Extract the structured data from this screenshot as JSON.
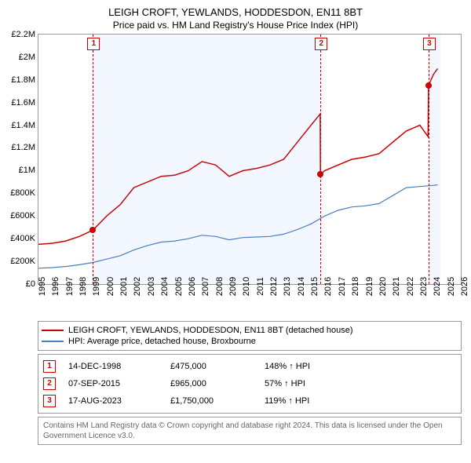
{
  "title": "LEIGH CROFT, YEWLANDS, HODDESDON, EN11 8BT",
  "subtitle": "Price paid vs. HM Land Registry's House Price Index (HPI)",
  "chart": {
    "type": "line",
    "background_color": "#ffffff",
    "shaded_band_color": "rgba(100,150,255,0.08)",
    "x_min": 1995,
    "x_max": 2026,
    "x_ticks": [
      1995,
      1996,
      1997,
      1998,
      1999,
      2000,
      2001,
      2002,
      2003,
      2004,
      2005,
      2006,
      2007,
      2008,
      2009,
      2010,
      2011,
      2012,
      2013,
      2014,
      2015,
      2016,
      2017,
      2018,
      2019,
      2020,
      2021,
      2022,
      2023,
      2024,
      2025,
      2026
    ],
    "y_min": 0,
    "y_max": 2200000,
    "y_ticks": [
      0,
      200000,
      400000,
      600000,
      800000,
      1000000,
      1200000,
      1400000,
      1600000,
      1800000,
      2000000,
      2200000
    ],
    "y_tick_labels": [
      "£0",
      "£200K",
      "£400K",
      "£600K",
      "£800K",
      "£1M",
      "£1.2M",
      "£1.4M",
      "£1.6M",
      "£1.8M",
      "£2M",
      "£2.2M"
    ],
    "shaded_bands": [
      {
        "from": 1999,
        "to": 2015.7
      },
      {
        "from": 2023.63,
        "to": 2024.5
      }
    ],
    "series": [
      {
        "name": "price_paid",
        "label": "LEIGH CROFT, YEWLANDS, HODDESDON, EN11 8BT (detached house)",
        "color": "#cc0000",
        "line_width": 1.5,
        "points": [
          [
            1995,
            350000
          ],
          [
            1996,
            360000
          ],
          [
            1997,
            380000
          ],
          [
            1998,
            420000
          ],
          [
            1999,
            475000
          ],
          [
            2000,
            600000
          ],
          [
            2001,
            700000
          ],
          [
            2002,
            850000
          ],
          [
            2003,
            900000
          ],
          [
            2004,
            950000
          ],
          [
            2005,
            960000
          ],
          [
            2006,
            1000000
          ],
          [
            2007,
            1080000
          ],
          [
            2008,
            1050000
          ],
          [
            2009,
            950000
          ],
          [
            2010,
            1000000
          ],
          [
            2011,
            1020000
          ],
          [
            2012,
            1050000
          ],
          [
            2013,
            1100000
          ],
          [
            2014,
            1250000
          ],
          [
            2015,
            1400000
          ],
          [
            2015.68,
            1500000
          ],
          [
            2015.7,
            965000
          ],
          [
            2016,
            1000000
          ],
          [
            2017,
            1050000
          ],
          [
            2018,
            1100000
          ],
          [
            2019,
            1120000
          ],
          [
            2020,
            1150000
          ],
          [
            2021,
            1250000
          ],
          [
            2022,
            1350000
          ],
          [
            2023,
            1400000
          ],
          [
            2023.6,
            1300000
          ],
          [
            2023.63,
            1750000
          ],
          [
            2024,
            1850000
          ],
          [
            2024.3,
            1900000
          ]
        ]
      },
      {
        "name": "hpi",
        "label": "HPI: Average price, detached house, Broxbourne",
        "color": "#4a7ebb",
        "line_width": 1.2,
        "points": [
          [
            1995,
            140000
          ],
          [
            1996,
            145000
          ],
          [
            1997,
            155000
          ],
          [
            1998,
            170000
          ],
          [
            1999,
            190000
          ],
          [
            2000,
            220000
          ],
          [
            2001,
            250000
          ],
          [
            2002,
            300000
          ],
          [
            2003,
            340000
          ],
          [
            2004,
            370000
          ],
          [
            2005,
            380000
          ],
          [
            2006,
            400000
          ],
          [
            2007,
            430000
          ],
          [
            2008,
            420000
          ],
          [
            2009,
            390000
          ],
          [
            2010,
            410000
          ],
          [
            2011,
            415000
          ],
          [
            2012,
            420000
          ],
          [
            2013,
            440000
          ],
          [
            2014,
            480000
          ],
          [
            2015,
            530000
          ],
          [
            2016,
            600000
          ],
          [
            2017,
            650000
          ],
          [
            2018,
            680000
          ],
          [
            2019,
            690000
          ],
          [
            2020,
            710000
          ],
          [
            2021,
            780000
          ],
          [
            2022,
            850000
          ],
          [
            2023,
            860000
          ],
          [
            2024,
            870000
          ],
          [
            2024.3,
            875000
          ]
        ]
      }
    ],
    "markers": [
      {
        "num": "1",
        "year": 1999.0,
        "price": 475000
      },
      {
        "num": "2",
        "year": 2015.7,
        "price": 965000
      },
      {
        "num": "3",
        "year": 2023.63,
        "price": 1750000
      }
    ]
  },
  "legend": {
    "items": [
      {
        "color": "#cc0000",
        "label": "LEIGH CROFT, YEWLANDS, HODDESDON, EN11 8BT (detached house)"
      },
      {
        "color": "#4a7ebb",
        "label": "HPI: Average price, detached house, Broxbourne"
      }
    ]
  },
  "events": [
    {
      "num": "1",
      "date": "14-DEC-1998",
      "price": "£475,000",
      "pct": "148% ↑ HPI"
    },
    {
      "num": "2",
      "date": "07-SEP-2015",
      "price": "£965,000",
      "pct": "57% ↑ HPI"
    },
    {
      "num": "3",
      "date": "17-AUG-2023",
      "price": "£1,750,000",
      "pct": "119% ↑ HPI"
    }
  ],
  "footnote": "Contains HM Land Registry data © Crown copyright and database right 2024. This data is licensed under the Open Government Licence v3.0."
}
